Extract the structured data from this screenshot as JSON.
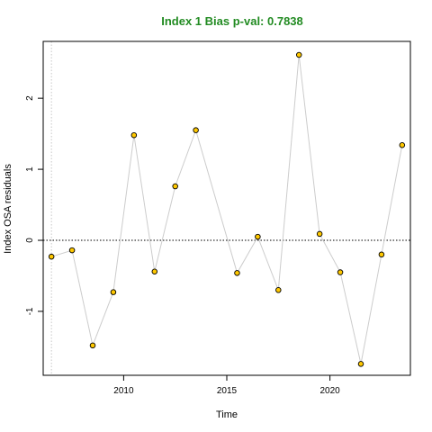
{
  "chart_data": {
    "type": "scatter",
    "title": "Index 1 Bias p-val: 0.7838",
    "xlabel": "Time",
    "ylabel": "Index OSA residuals",
    "xlim": [
      2006.1,
      2023.9
    ],
    "ylim": [
      -1.9,
      2.8
    ],
    "x_ticks": [
      2010,
      2015,
      2020
    ],
    "y_ticks": [
      -1,
      0,
      1,
      2
    ],
    "reference_hline": 0,
    "reference_vline": 2006.5,
    "colors": {
      "point_fill": "#FFC800",
      "point_stroke": "#000000",
      "line": "#cccccc",
      "title": "#228B22"
    },
    "series": [
      {
        "x": [
          2006.5,
          2007.5,
          2008.5,
          2009.5,
          2010.5,
          2011.5,
          2012.5,
          2013.5,
          2015.5,
          2016.5,
          2017.5,
          2018.5,
          2019.5,
          2020.5,
          2021.5,
          2022.5,
          2023.5
        ],
        "values": [
          -0.23,
          -0.14,
          -1.48,
          -0.73,
          1.48,
          -0.44,
          0.76,
          1.55,
          -0.46,
          0.05,
          -0.7,
          2.61,
          0.09,
          -0.45,
          -1.74,
          -0.2,
          1.34
        ]
      }
    ]
  }
}
